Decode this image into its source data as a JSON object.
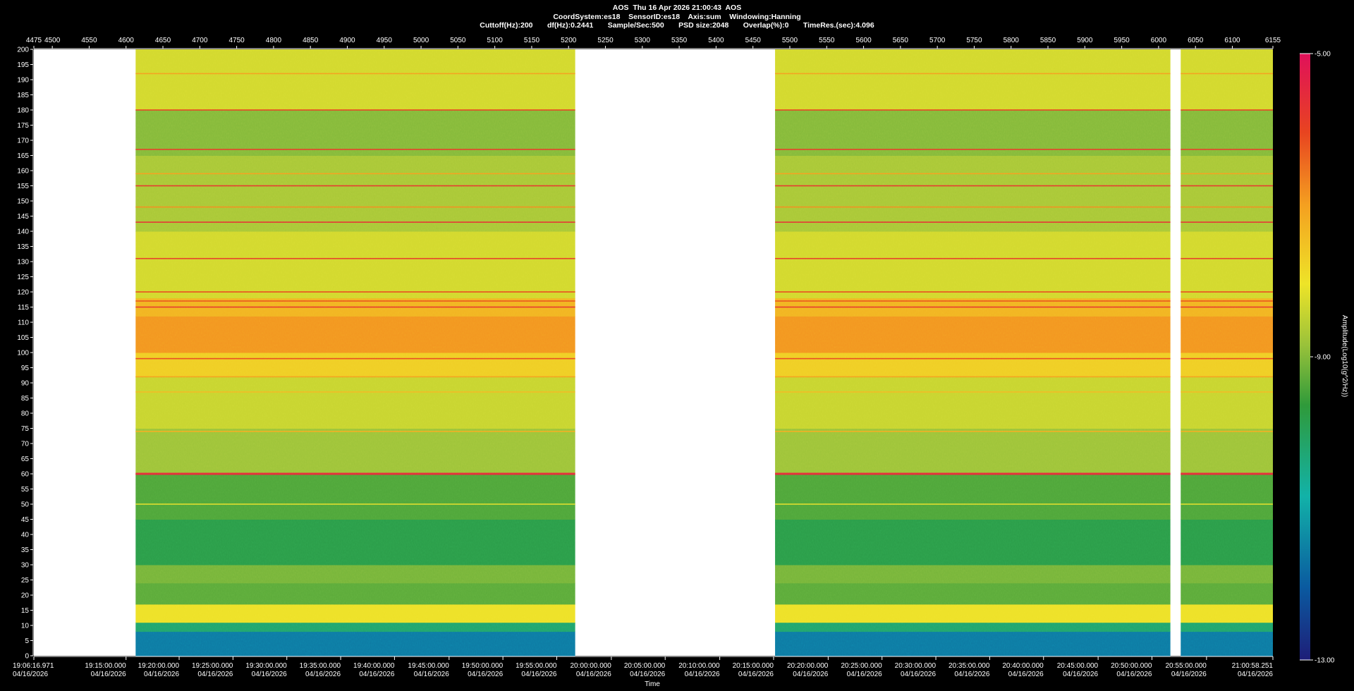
{
  "header": {
    "line1": "AOS  Thu 16 Apr 2026 21:00:43  AOS",
    "line2": "CoordSystem:es18    SensorID:es18    Axis:sum    Windowing:Hanning",
    "line3": "Cuttoff(Hz):200       df(Hz):0.2441       Sample/Sec:500       PSD size:2048       Overlap(%):0       TimeRes.(sec):4.096"
  },
  "chart_data": {
    "type": "heatmap",
    "xlabel": "Time",
    "colorbar_label": "Amplitude(Log10(g^2/Hz))",
    "colorbar_ticks": [
      "-5.00",
      "-9.00",
      "-13.00"
    ],
    "colorbar_range": [
      -13,
      -5
    ],
    "yrange": [
      0,
      200
    ],
    "y_ticks": [
      0,
      5,
      10,
      15,
      20,
      25,
      30,
      35,
      40,
      45,
      50,
      55,
      60,
      65,
      70,
      75,
      80,
      85,
      90,
      95,
      100,
      105,
      110,
      115,
      120,
      125,
      130,
      135,
      140,
      145,
      150,
      155,
      160,
      165,
      170,
      175,
      180,
      185,
      190,
      195,
      200
    ],
    "x_index_range": [
      4475,
      6155
    ],
    "top_ticks": [
      4475,
      4500,
      4550,
      4600,
      4650,
      4700,
      4750,
      4800,
      4850,
      4900,
      4950,
      5000,
      5050,
      5100,
      5150,
      5200,
      5250,
      5300,
      5350,
      5400,
      5450,
      5500,
      5550,
      5600,
      5650,
      5700,
      5750,
      5800,
      5850,
      5900,
      5950,
      6000,
      6050,
      6100,
      6155
    ],
    "bottom_ticks": [
      {
        "index": 4475,
        "time": "19:06:16.971",
        "date": "04/16/2026"
      },
      {
        "index": 4600,
        "time": "19:15:00.000",
        "date": "04/16/2026"
      },
      {
        "index": 4672,
        "time": "19:20:00.000",
        "date": "04/16/2026"
      },
      {
        "index": 4745,
        "time": "19:25:00.000",
        "date": "04/16/2026"
      },
      {
        "index": 4818,
        "time": "19:30:00.000",
        "date": "04/16/2026"
      },
      {
        "index": 4891,
        "time": "19:35:00.000",
        "date": "04/16/2026"
      },
      {
        "index": 4964,
        "time": "19:40:00.000",
        "date": "04/16/2026"
      },
      {
        "index": 5038,
        "time": "19:45:00.000",
        "date": "04/16/2026"
      },
      {
        "index": 5111,
        "time": "19:50:00.000",
        "date": "04/16/2026"
      },
      {
        "index": 5184,
        "time": "19:55:00.000",
        "date": "04/16/2026"
      },
      {
        "index": 5258,
        "time": "20:00:00.000",
        "date": "04/16/2026"
      },
      {
        "index": 5331,
        "time": "20:05:00.000",
        "date": "04/16/2026"
      },
      {
        "index": 5405,
        "time": "20:10:00.000",
        "date": "04/16/2026"
      },
      {
        "index": 5478,
        "time": "20:15:00.000",
        "date": "04/16/2026"
      },
      {
        "index": 5552,
        "time": "20:20:00.000",
        "date": "04/16/2026"
      },
      {
        "index": 5625,
        "time": "20:25:00.000",
        "date": "04/16/2026"
      },
      {
        "index": 5698,
        "time": "20:30:00.000",
        "date": "04/16/2026"
      },
      {
        "index": 5771,
        "time": "20:35:00.000",
        "date": "04/16/2026"
      },
      {
        "index": 5844,
        "time": "20:40:00.000",
        "date": "04/16/2026"
      },
      {
        "index": 5918,
        "time": "20:45:00.000",
        "date": "04/16/2026"
      },
      {
        "index": 5991,
        "time": "20:50:00.000",
        "date": "04/16/2026"
      },
      {
        "index": 6065,
        "time": "20:55:00.000",
        "date": "04/16/2026"
      },
      {
        "index": 6155,
        "time": "21:00:58.251",
        "date": "04/16/2026"
      }
    ],
    "data_segments": [
      {
        "x_start": 4613,
        "x_end": 5209
      },
      {
        "x_start": 5480,
        "x_end": 6016
      },
      {
        "x_start": 6030,
        "x_end": 6155
      }
    ],
    "bands": [
      {
        "f_start": 0,
        "f_end": 8,
        "level": -11.6
      },
      {
        "f_start": 8,
        "f_end": 11,
        "level": -10.2
      },
      {
        "f_start": 11,
        "f_end": 17,
        "level": -8.0
      },
      {
        "f_start": 17,
        "f_end": 24,
        "level": -9.3
      },
      {
        "f_start": 24,
        "f_end": 30,
        "level": -9.1
      },
      {
        "f_start": 30,
        "f_end": 45,
        "level": -9.8
      },
      {
        "f_start": 45,
        "f_end": 60,
        "level": -9.4
      },
      {
        "f_start": 60,
        "f_end": 75,
        "level": -8.8
      },
      {
        "f_start": 75,
        "f_end": 92,
        "level": -8.4
      },
      {
        "f_start": 92,
        "f_end": 100,
        "level": -7.7
      },
      {
        "f_start": 100,
        "f_end": 112,
        "level": -6.9
      },
      {
        "f_start": 112,
        "f_end": 118,
        "level": -7.3
      },
      {
        "f_start": 118,
        "f_end": 140,
        "level": -8.3
      },
      {
        "f_start": 140,
        "f_end": 165,
        "level": -8.7
      },
      {
        "f_start": 165,
        "f_end": 180,
        "level": -9.0
      },
      {
        "f_start": 180,
        "f_end": 200,
        "level": -8.3
      }
    ],
    "tones": [
      {
        "f": 50,
        "level": -8.2
      },
      {
        "f": 60,
        "level": -5.6
      },
      {
        "f": 74,
        "level": -7.2
      },
      {
        "f": 87,
        "level": -7.4
      },
      {
        "f": 92,
        "level": -7.0
      },
      {
        "f": 98,
        "level": -6.1
      },
      {
        "f": 115,
        "level": -5.8
      },
      {
        "f": 117,
        "level": -6.2
      },
      {
        "f": 120,
        "level": -6.1
      },
      {
        "f": 131,
        "level": -5.9
      },
      {
        "f": 143,
        "level": -5.7
      },
      {
        "f": 148,
        "level": -6.8
      },
      {
        "f": 155,
        "level": -5.8
      },
      {
        "f": 159,
        "level": -7.0
      },
      {
        "f": 167,
        "level": -5.9
      },
      {
        "f": 180,
        "level": -6.0
      },
      {
        "f": 192,
        "level": -7.0
      }
    ]
  }
}
